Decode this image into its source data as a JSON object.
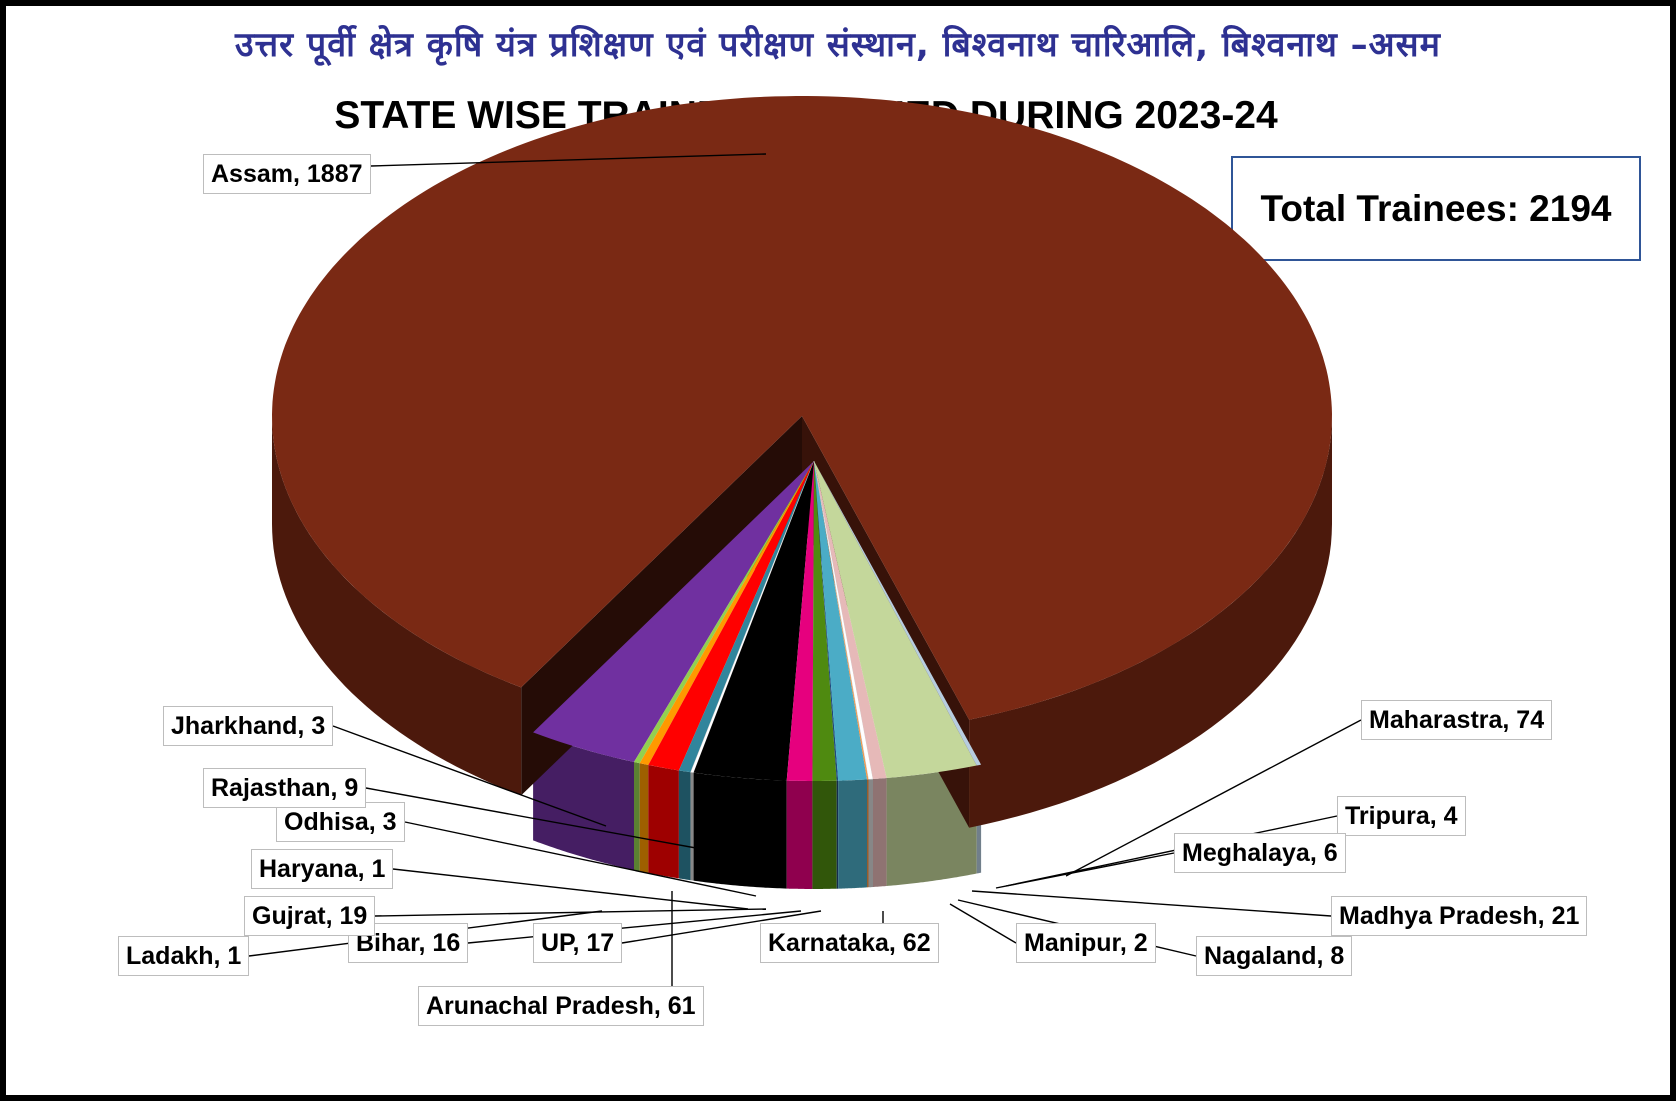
{
  "header": {
    "hindi_title": "उत्तर पूर्वी क्षेत्र कृषि यंत्र प्रशिक्षण एवं परीक्षण संस्थान, बिश्वनाथ चारिआलि, बिश्वनाथ –असम"
  },
  "total": {
    "label": "Total Trainees: 2194"
  },
  "chart_data": {
    "type": "pie",
    "title": "STATE WISE TRAINEES TRAINED DURING 2023-24",
    "total": 2194,
    "slices": [
      {
        "name": "Maharastra",
        "value": 74,
        "color": "#7030a0",
        "text": "Maharastra, 74"
      },
      {
        "name": "Tripura",
        "value": 4,
        "color": "#92d050",
        "text": "Tripura, 4"
      },
      {
        "name": "Meghalaya",
        "value": 6,
        "color": "#ff9900",
        "text": "Meghalaya, 6"
      },
      {
        "name": "Madhya Pradesh",
        "value": 21,
        "color": "#ff0000",
        "text": "Madhya Pradesh, 21"
      },
      {
        "name": "Nagaland",
        "value": 8,
        "color": "#31859c",
        "text": "Nagaland, 8"
      },
      {
        "name": "Manipur",
        "value": 2,
        "color": "#ffffff",
        "text": "Manipur, 2"
      },
      {
        "name": "Karnataka",
        "value": 62,
        "color": "#000000",
        "text": "Karnataka, 62"
      },
      {
        "name": "UP",
        "value": 17,
        "color": "#e6007e",
        "text": "UP, 17"
      },
      {
        "name": "Bihar",
        "value": 16,
        "color": "#4f8a10",
        "text": "Bihar, 16"
      },
      {
        "name": "Ladakh",
        "value": 1,
        "color": "#1f497d",
        "text": "Ladakh, 1"
      },
      {
        "name": "Gujrat",
        "value": 19,
        "color": "#4bacc6",
        "text": "Gujrat, 19"
      },
      {
        "name": "Haryana",
        "value": 1,
        "color": "#f79646",
        "text": "Haryana, 1"
      },
      {
        "name": "Odhisa",
        "value": 3,
        "color": "#ffffff",
        "text": "Odhisa, 3"
      },
      {
        "name": "Rajasthan",
        "value": 9,
        "color": "#e6b9b8",
        "text": "Rajasthan, 9"
      },
      {
        "name": "Arunachal Pradesh",
        "value": 61,
        "color": "#c4d79b",
        "text": "Arunachal Pradesh, 61"
      },
      {
        "name": "Jharkhand",
        "value": 3,
        "color": "#b7cde0",
        "text": "Jharkhand, 3"
      },
      {
        "name": "Assam",
        "value": 1887,
        "color": "#7a2914",
        "text": "Assam, 1887"
      }
    ]
  }
}
